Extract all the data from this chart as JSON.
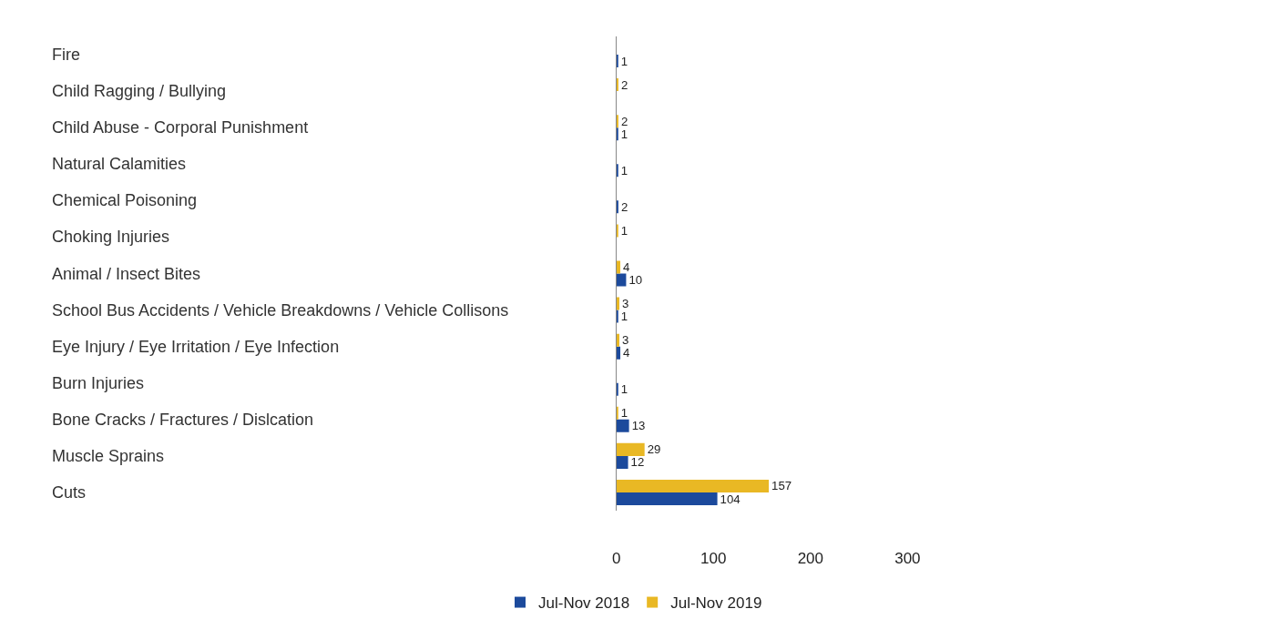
{
  "chart_data": {
    "type": "bar",
    "orientation": "horizontal",
    "categories": [
      "Fire",
      "Child Ragging / Bullying",
      "Child Abuse - Corporal Punishment",
      "Natural Calamities",
      "Chemical Poisoning",
      "Choking Injuries",
      "Animal / Insect Bites",
      "School Bus Accidents / Vehicle Breakdowns / Vehicle Collisons",
      "Eye Injury / Eye Irritation / Eye Infection",
      "Burn Injuries",
      "Bone Cracks / Fractures / Dislcation",
      "Muscle Sprains",
      "Cuts"
    ],
    "series": [
      {
        "name": "Jul-Nov 2018",
        "color": "#1c4a9c",
        "values": [
          1,
          null,
          1,
          1,
          2,
          null,
          10,
          1,
          4,
          1,
          13,
          12,
          104
        ]
      },
      {
        "name": "Jul-Nov 2019",
        "color": "#e9b824",
        "values": [
          null,
          2,
          2,
          null,
          null,
          1,
          4,
          3,
          3,
          null,
          1,
          29,
          157
        ]
      }
    ],
    "xlim": [
      0,
      300
    ],
    "xticks": [
      0,
      100,
      200,
      300
    ],
    "data_labels": true,
    "legend": "bottom"
  }
}
